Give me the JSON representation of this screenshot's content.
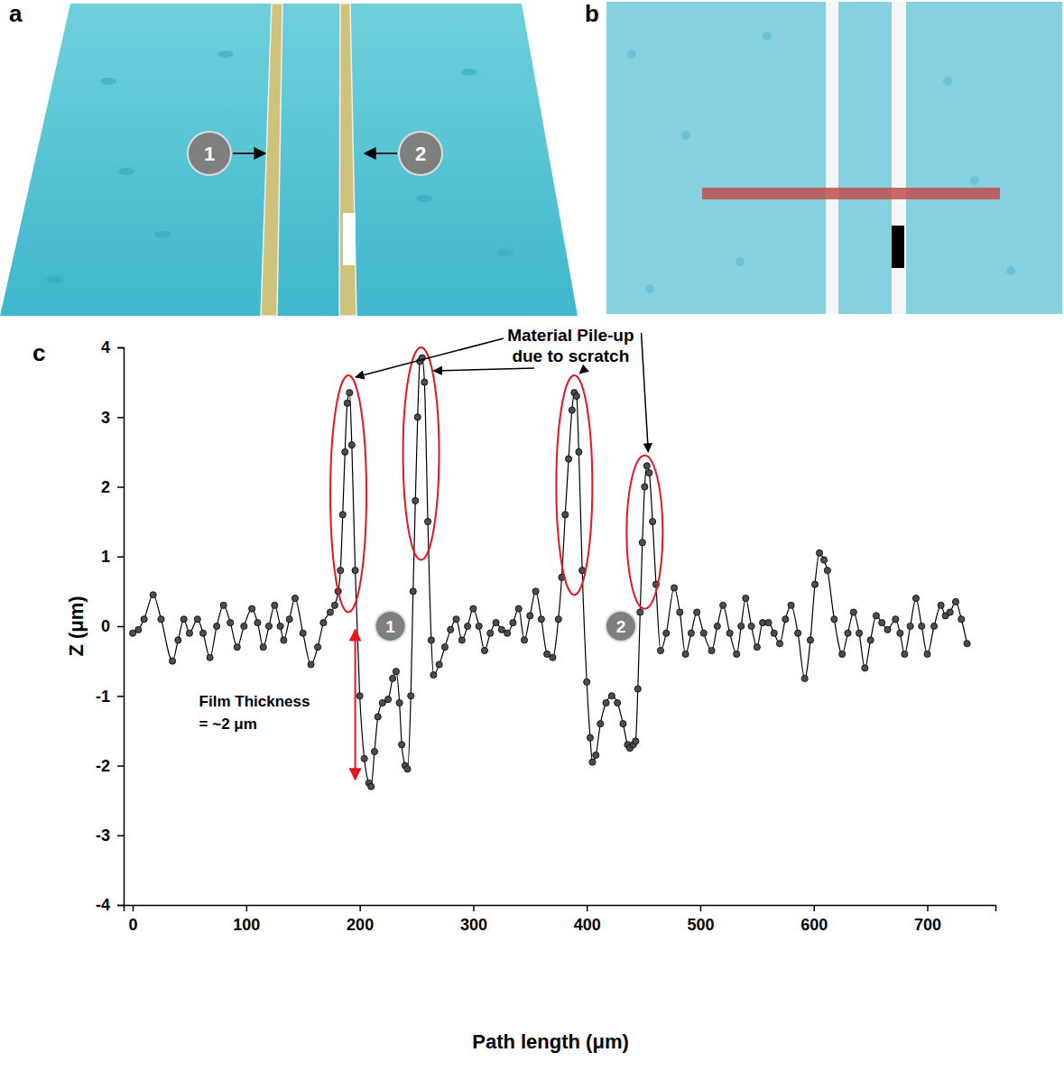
{
  "panels": [
    {
      "label": "a",
      "markers": [
        "1",
        "2"
      ]
    },
    {
      "label": "b"
    }
  ],
  "chart_data": {
    "type": "line",
    "panel_label": "c",
    "x_label": "Path length (μm)",
    "y_label": "Z (μm)",
    "x": [
      0,
      5,
      10,
      18,
      25,
      35,
      40,
      45,
      50,
      57,
      62,
      68,
      74,
      80,
      86,
      92,
      98,
      105,
      110,
      115,
      120,
      125,
      130,
      133,
      138,
      143,
      150,
      157,
      163,
      168,
      174,
      178,
      181,
      183,
      185,
      187,
      189,
      191,
      193,
      196,
      200,
      204,
      208,
      210,
      213,
      216,
      220,
      225,
      229,
      232,
      235,
      237,
      240,
      242,
      245,
      247,
      249,
      251,
      253,
      255,
      257,
      260,
      263,
      265,
      270,
      275,
      280,
      285,
      290,
      295,
      300,
      305,
      310,
      315,
      320,
      325,
      330,
      335,
      340,
      345,
      350,
      355,
      360,
      365,
      370,
      375,
      378,
      381,
      384,
      387,
      389,
      391,
      393,
      396,
      400,
      403,
      405,
      408,
      412,
      417,
      422,
      427,
      432,
      436,
      438,
      441,
      443,
      445,
      447,
      449,
      451,
      453,
      455,
      458,
      461,
      465,
      470,
      477,
      482,
      487,
      492,
      497,
      503,
      510,
      515,
      520,
      526,
      532,
      536,
      540,
      545,
      550,
      555,
      560,
      565,
      570,
      575,
      580,
      586,
      592,
      597,
      601,
      605,
      609,
      612,
      618,
      625,
      630,
      635,
      640,
      645,
      650,
      655,
      660,
      665,
      672,
      676,
      680,
      685,
      690,
      695,
      700,
      706,
      712,
      716,
      720,
      725,
      730,
      735
    ],
    "series": [
      {
        "color": "#000000",
        "marker": "circle",
        "line_style": "solid",
        "values": [
          -0.1,
          -0.05,
          0.1,
          0.45,
          0.1,
          -0.5,
          -0.2,
          0.1,
          -0.1,
          0.1,
          -0.1,
          -0.45,
          0,
          0.3,
          0.05,
          -0.3,
          0,
          0.25,
          0.05,
          -0.3,
          0,
          0.3,
          0,
          -0.2,
          0.1,
          0.4,
          -0.1,
          -0.55,
          -0.3,
          0.05,
          0.2,
          0.3,
          0.5,
          0.8,
          1.6,
          2.5,
          3.2,
          3.35,
          2.6,
          0.8,
          -1.0,
          -1.9,
          -2.25,
          -2.3,
          -1.8,
          -1.3,
          -1.1,
          -1.05,
          -0.75,
          -0.65,
          -1.1,
          -1.7,
          -2.0,
          -2.05,
          -1.0,
          0.5,
          1.8,
          3.0,
          3.8,
          3.85,
          3.5,
          1.5,
          -0.2,
          -0.7,
          -0.55,
          -0.3,
          -0.05,
          0.1,
          -0.2,
          0,
          0.25,
          0,
          -0.35,
          -0.1,
          0.05,
          -0.05,
          -0.1,
          0.05,
          0.25,
          -0.2,
          0.15,
          0.5,
          0.1,
          -0.4,
          -0.45,
          0.1,
          0.7,
          1.6,
          2.4,
          3.1,
          3.35,
          3.3,
          2.5,
          0.8,
          -0.8,
          -1.6,
          -1.95,
          -1.85,
          -1.4,
          -1.1,
          -1.0,
          -1.1,
          -1.4,
          -1.7,
          -1.75,
          -1.7,
          -1.65,
          -0.9,
          0.2,
          1.2,
          2.0,
          2.3,
          2.2,
          1.5,
          0.6,
          -0.35,
          -0.1,
          0.55,
          0.2,
          -0.4,
          -0.1,
          0.2,
          -0.1,
          -0.35,
          0,
          0.3,
          -0.1,
          -0.4,
          0,
          0.4,
          0,
          -0.3,
          0.05,
          0.05,
          -0.1,
          -0.25,
          0.1,
          0.3,
          -0.1,
          -0.75,
          -0.2,
          0.6,
          1.05,
          0.95,
          0.8,
          0.1,
          -0.4,
          -0.1,
          0.2,
          -0.1,
          -0.6,
          -0.2,
          0.15,
          0.05,
          -0.05,
          0.1,
          -0.1,
          -0.4,
          0,
          0.4,
          0,
          -0.4,
          0,
          0.3,
          0.15,
          0.2,
          0.35,
          0.1,
          -0.25
        ]
      }
    ],
    "xlim": [
      -8,
      760
    ],
    "xticks": [
      0,
      100,
      200,
      300,
      400,
      500,
      600,
      700
    ],
    "ylim": [
      -4,
      4
    ],
    "yticks": [
      -4,
      -3,
      -2,
      -1,
      0,
      1,
      2,
      3,
      4
    ],
    "annotations": [
      {
        "text_lines": [
          "Material Pile-up",
          "due to scratch"
        ],
        "highlights": [
          {
            "x": 190,
            "y_from": 0.2,
            "y_to": 3.6
          },
          {
            "x": 254,
            "y_from": 0.95,
            "y_to": 4.0
          },
          {
            "x": 389,
            "y_from": 0.45,
            "y_to": 3.6
          },
          {
            "x": 451,
            "y_from": 0.25,
            "y_to": 2.45
          }
        ]
      },
      {
        "text_lines": [
          "Film Thickness",
          "= ~2 μm"
        ],
        "x": 196,
        "y_from": 0,
        "y_to": -2.2
      }
    ],
    "markers": [
      {
        "label": "1",
        "x": 227,
        "y": 0
      },
      {
        "label": "2",
        "x": 430,
        "y": 0
      }
    ]
  }
}
